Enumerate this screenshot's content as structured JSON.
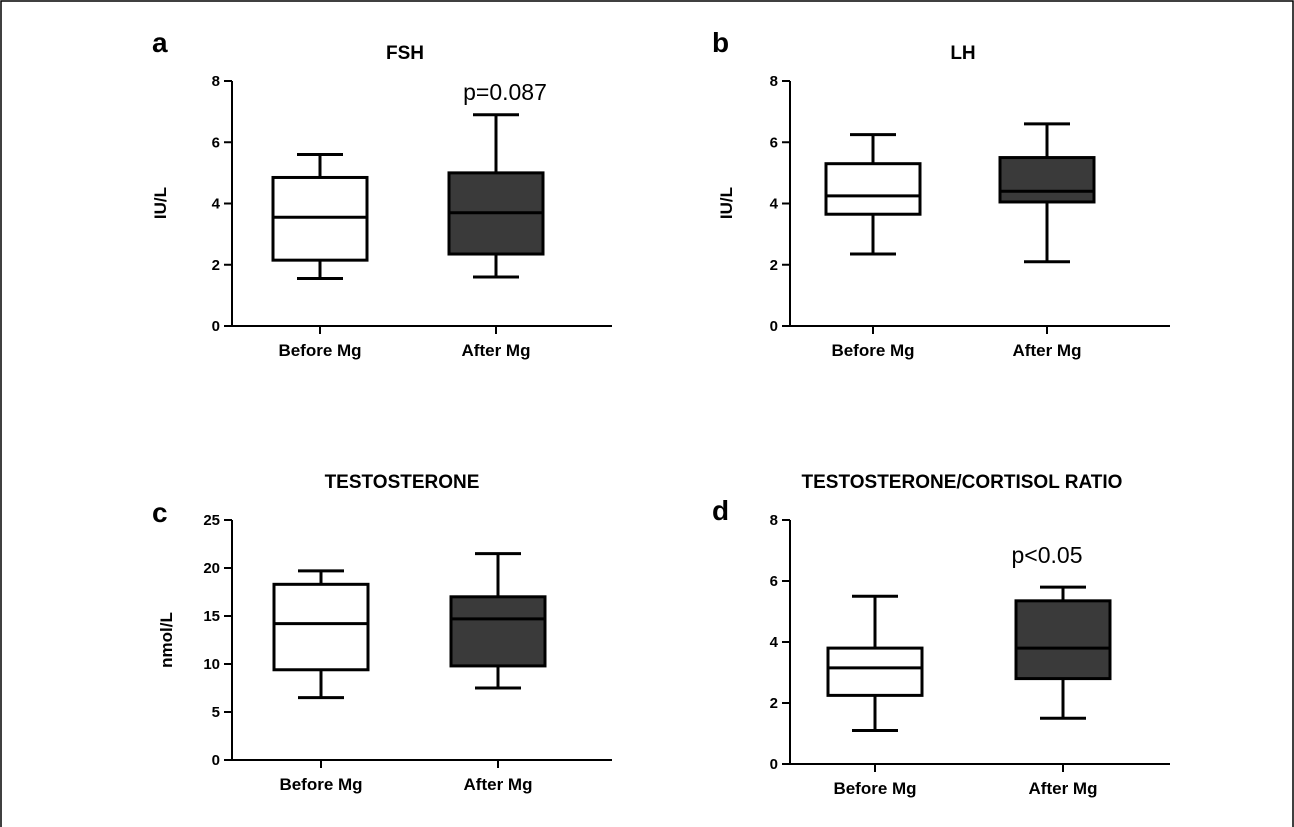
{
  "chart_data": [
    {
      "type": "box",
      "panel": "a",
      "title": "FSH",
      "ylabel": "IU/L",
      "ylim": [
        0,
        8
      ],
      "yticks": [
        "0",
        "2",
        "4",
        "6",
        "8"
      ],
      "categories": [
        "Before Mg",
        "After Mg"
      ],
      "boxes": [
        {
          "min": 1.55,
          "q1": 2.15,
          "median": 3.55,
          "q3": 4.85,
          "max": 5.6,
          "fill": "#ffffff"
        },
        {
          "min": 1.6,
          "q1": 2.35,
          "median": 3.7,
          "q3": 5.0,
          "max": 6.9,
          "fill": "#3a3a3a"
        }
      ],
      "annotation": "p=0.087"
    },
    {
      "type": "box",
      "panel": "b",
      "title": "LH",
      "ylabel": "IU/L",
      "ylim": [
        0,
        8
      ],
      "yticks": [
        "0",
        "2",
        "4",
        "6",
        "8"
      ],
      "categories": [
        "Before Mg",
        "After Mg"
      ],
      "boxes": [
        {
          "min": 2.35,
          "q1": 3.65,
          "median": 4.25,
          "q3": 5.3,
          "max": 6.25,
          "fill": "#ffffff"
        },
        {
          "min": 2.1,
          "q1": 4.05,
          "median": 4.4,
          "q3": 5.5,
          "max": 6.6,
          "fill": "#3a3a3a"
        }
      ],
      "annotation": ""
    },
    {
      "type": "box",
      "panel": "c",
      "title": "TESTOSTERONE",
      "ylabel": "nmol/L",
      "ylim": [
        0,
        25
      ],
      "yticks": [
        "0",
        "5",
        "10",
        "15",
        "20",
        "25"
      ],
      "categories": [
        "Before Mg",
        "After Mg"
      ],
      "boxes": [
        {
          "min": 6.5,
          "q1": 9.4,
          "median": 14.2,
          "q3": 18.3,
          "max": 19.7,
          "fill": "#ffffff"
        },
        {
          "min": 7.5,
          "q1": 9.8,
          "median": 14.7,
          "q3": 17.0,
          "max": 21.5,
          "fill": "#3a3a3a"
        }
      ],
      "annotation": ""
    },
    {
      "type": "box",
      "panel": "d",
      "title": "TESTOSTERONE/CORTISOL RATIO",
      "ylabel": "",
      "ylim": [
        0,
        8
      ],
      "yticks": [
        "0",
        "2",
        "4",
        "6",
        "8"
      ],
      "categories": [
        "Before Mg",
        "After Mg"
      ],
      "boxes": [
        {
          "min": 1.1,
          "q1": 2.25,
          "median": 3.15,
          "q3": 3.8,
          "max": 5.5,
          "fill": "#ffffff"
        },
        {
          "min": 1.5,
          "q1": 2.8,
          "median": 3.8,
          "q3": 5.35,
          "max": 5.8,
          "fill": "#3a3a3a"
        }
      ],
      "annotation": "p<0.05"
    }
  ]
}
